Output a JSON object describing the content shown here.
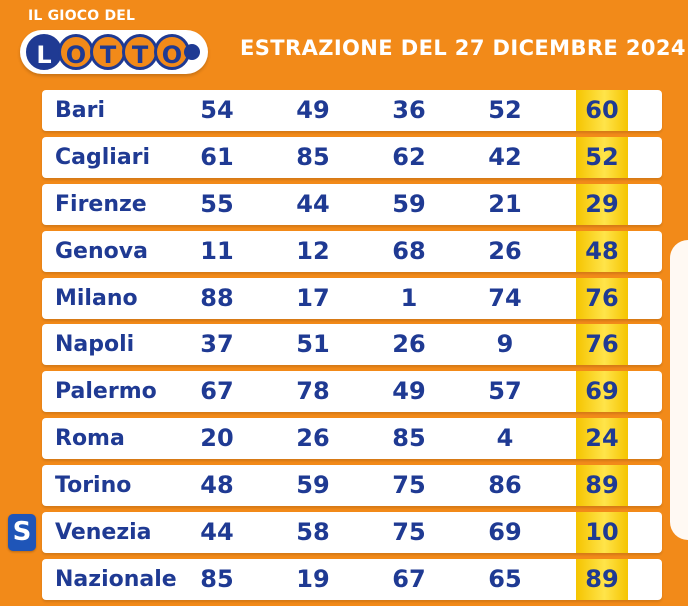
{
  "header": {
    "logo_caption": "IL GIOCO DEL",
    "logo_letters": [
      "L",
      "O",
      "T",
      "T",
      "O"
    ],
    "title": "ESTRAZIONE DEL 27 DICEMBRE 2024"
  },
  "colors": {
    "background": "#f28a19",
    "text": "#1f3a93",
    "highlight": "#f5c400",
    "badge": "#1f55b8"
  },
  "results": {
    "rows": [
      {
        "wheel": "Bari",
        "n1": "54",
        "n2": "49",
        "n3": "36",
        "n4": "52",
        "n5": "60"
      },
      {
        "wheel": "Cagliari",
        "n1": "61",
        "n2": "85",
        "n3": "62",
        "n4": "42",
        "n5": "52"
      },
      {
        "wheel": "Firenze",
        "n1": "55",
        "n2": "44",
        "n3": "59",
        "n4": "21",
        "n5": "29"
      },
      {
        "wheel": "Genova",
        "n1": "11",
        "n2": "12",
        "n3": "68",
        "n4": "26",
        "n5": "48"
      },
      {
        "wheel": "Milano",
        "n1": "88",
        "n2": "17",
        "n3": "1",
        "n4": "74",
        "n5": "76"
      },
      {
        "wheel": "Napoli",
        "n1": "37",
        "n2": "51",
        "n3": "26",
        "n4": "9",
        "n5": "76"
      },
      {
        "wheel": "Palermo",
        "n1": "67",
        "n2": "78",
        "n3": "49",
        "n4": "57",
        "n5": "69"
      },
      {
        "wheel": "Roma",
        "n1": "20",
        "n2": "26",
        "n3": "85",
        "n4": "4",
        "n5": "24"
      },
      {
        "wheel": "Torino",
        "n1": "48",
        "n2": "59",
        "n3": "75",
        "n4": "86",
        "n5": "89"
      },
      {
        "wheel": "Venezia",
        "n1": "44",
        "n2": "58",
        "n3": "75",
        "n4": "69",
        "n5": "10",
        "badge": "S"
      },
      {
        "wheel": "Nazionale",
        "n1": "85",
        "n2": "19",
        "n3": "67",
        "n4": "65",
        "n5": "89"
      }
    ]
  }
}
